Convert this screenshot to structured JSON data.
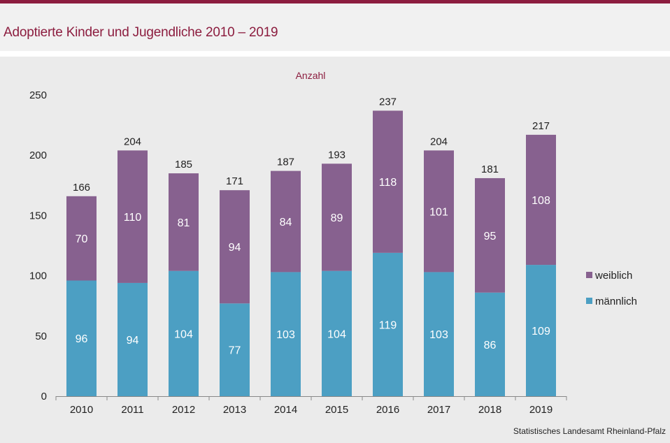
{
  "title": "Adoptierte Kinder und Jugendliche 2010 – 2019",
  "source": "Statistisches Landesamt  Rheinland-Pfalz",
  "colors": {
    "brand": "#8c1d3f",
    "weiblich": "#87618f",
    "maennlich": "#4c9fc3"
  },
  "chart_data": {
    "type": "bar",
    "stacked": true,
    "title": "",
    "ylabel": "Anzahl",
    "xlabel": "",
    "categories": [
      "2010",
      "2011",
      "2012",
      "2013",
      "2014",
      "2015",
      "2016",
      "2017",
      "2018",
      "2019"
    ],
    "series": [
      {
        "name": "männlich",
        "color": "#4c9fc3",
        "values": [
          96,
          94,
          104,
          77,
          103,
          104,
          119,
          103,
          86,
          109
        ]
      },
      {
        "name": "weiblich",
        "color": "#87618f",
        "values": [
          70,
          110,
          81,
          94,
          84,
          89,
          118,
          101,
          95,
          108
        ]
      }
    ],
    "totals": [
      166,
      204,
      185,
      171,
      187,
      193,
      237,
      204,
      181,
      217
    ],
    "ylim": [
      0,
      250
    ],
    "yticks": [
      0,
      50,
      100,
      150,
      200,
      250
    ],
    "grid": false,
    "legend_position": "right",
    "legend_order": [
      "weiblich",
      "männlich"
    ]
  }
}
